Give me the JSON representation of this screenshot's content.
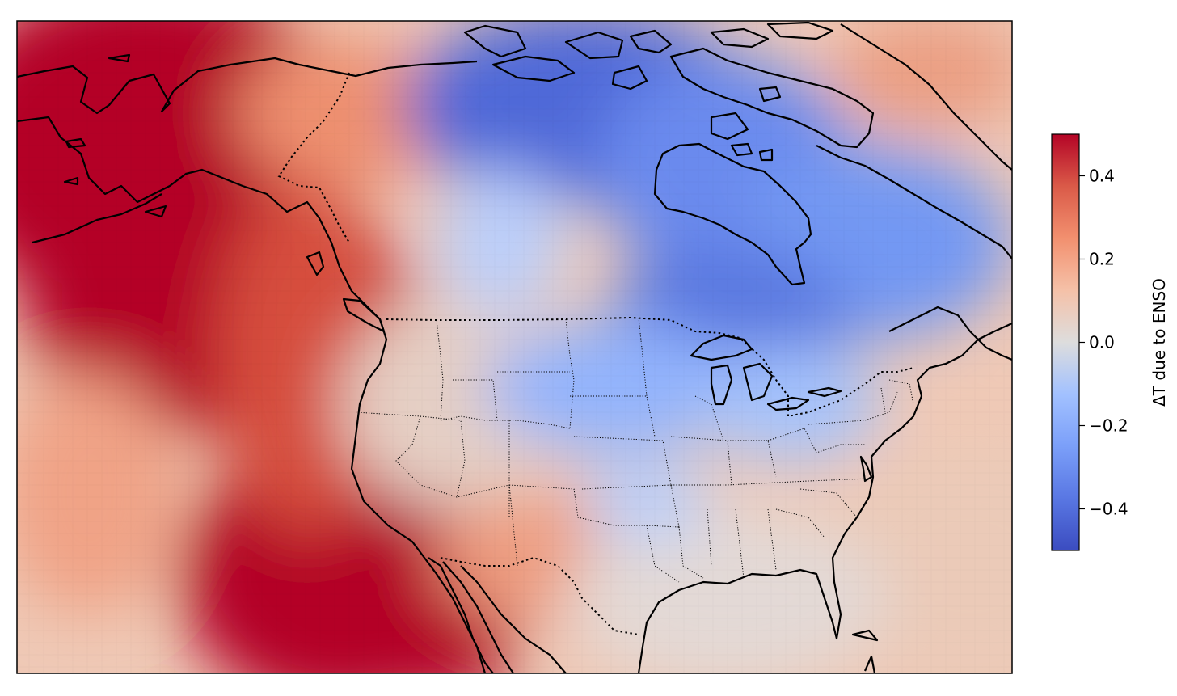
{
  "colorbar": {
    "label": "ΔT due to ENSO",
    "min": -0.5,
    "max": 0.5,
    "colormap": "coolwarm",
    "ticks": [
      {
        "value": 0.4,
        "text": "0.4"
      },
      {
        "value": 0.2,
        "text": "0.2"
      },
      {
        "value": 0.0,
        "text": "0.0"
      },
      {
        "value": -0.2,
        "text": "−0.2"
      },
      {
        "value": -0.4,
        "text": "−0.4"
      }
    ]
  },
  "map": {
    "region": "North America",
    "projection": "conic",
    "field": "temperature anomaly",
    "coastlines": true,
    "borders": "dotted",
    "colors": {
      "warm_extreme": "#b40426",
      "neutral": "#dddddd",
      "cool_extreme": "#3b4cc0"
    }
  }
}
